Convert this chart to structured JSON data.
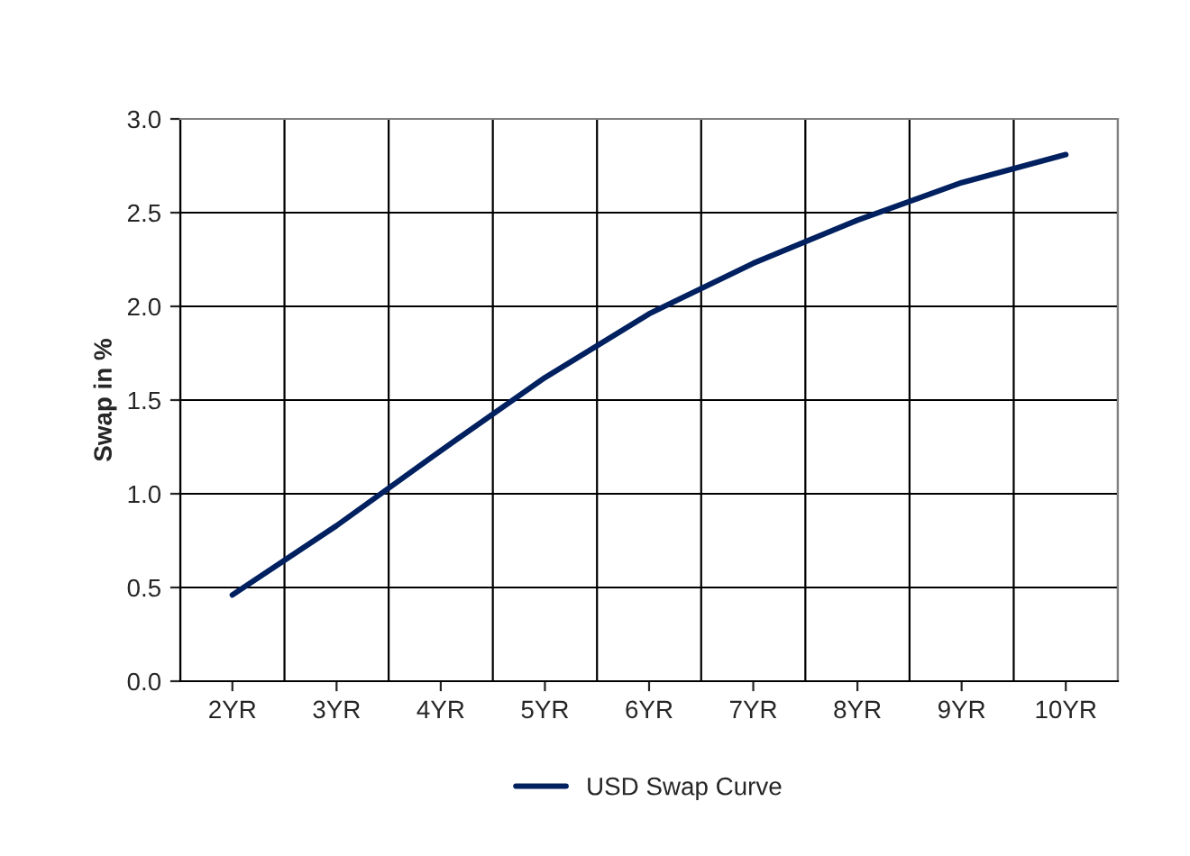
{
  "chart_data": {
    "type": "line",
    "ylabel": "Swap in %",
    "categories": [
      "2YR",
      "3YR",
      "4YR",
      "5YR",
      "6YR",
      "7YR",
      "8YR",
      "9YR",
      "10YR"
    ],
    "series": [
      {
        "name": "USD Swap Curve",
        "color": "#002060",
        "values": [
          0.46,
          0.83,
          1.23,
          1.62,
          1.96,
          2.23,
          2.46,
          2.66,
          2.81
        ]
      }
    ],
    "ylim": [
      0.0,
      3.0
    ],
    "yticks": [
      {
        "value": 0,
        "label": "0.0"
      },
      {
        "value": 0.5,
        "label": "0.5"
      },
      {
        "value": 1,
        "label": "1.0"
      },
      {
        "value": 1.5,
        "label": "1.5"
      },
      {
        "value": 2,
        "label": "2.0"
      },
      {
        "value": 2.5,
        "label": "2.5"
      },
      {
        "value": 3,
        "label": "3.0"
      }
    ],
    "grid": true,
    "legend": "bottom",
    "marker": "none",
    "line_style": "solid"
  }
}
